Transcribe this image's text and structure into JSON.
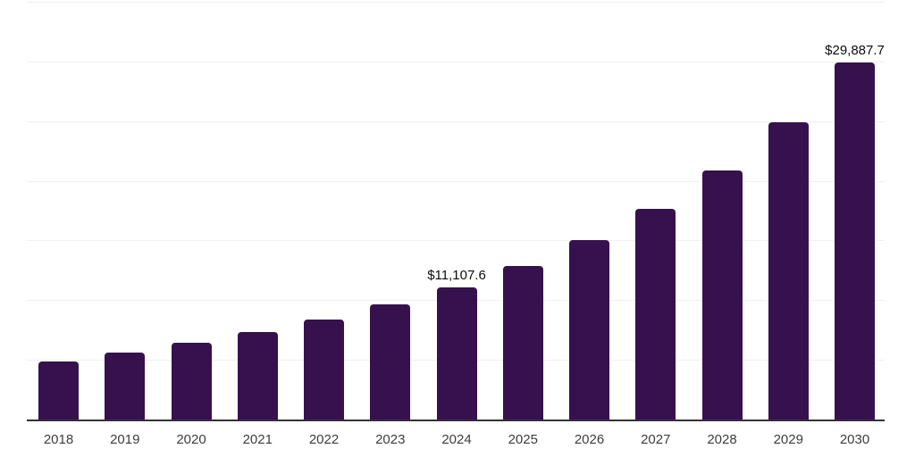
{
  "chart_data": {
    "type": "bar",
    "title": "",
    "subtitle": "",
    "xlabel": "",
    "ylabel": "",
    "categories": [
      "2018",
      "2019",
      "2020",
      "2021",
      "2022",
      "2023",
      "2024",
      "2025",
      "2026",
      "2027",
      "2028",
      "2029",
      "2030"
    ],
    "values": [
      4900,
      5610,
      6450,
      7330,
      8380,
      9670,
      11107.6,
      12830,
      15030,
      17620,
      20860,
      24900,
      29887.7
    ],
    "data_labels": {
      "2024": "$11,107.6",
      "2030": "$29,887.7"
    },
    "ylim": [
      0,
      35000
    ],
    "ytick_interval": 5000,
    "grid": "horizontal gridlines only, no y-axis tick labels",
    "legend_position": "none",
    "colors": {
      "bar": "#36114E",
      "gridline": "#F0F0F0",
      "axis_line": "#333333",
      "tick_label": "#3D3D3D",
      "data_label": "#0D0D0D",
      "background": "#FFFFFF"
    }
  }
}
